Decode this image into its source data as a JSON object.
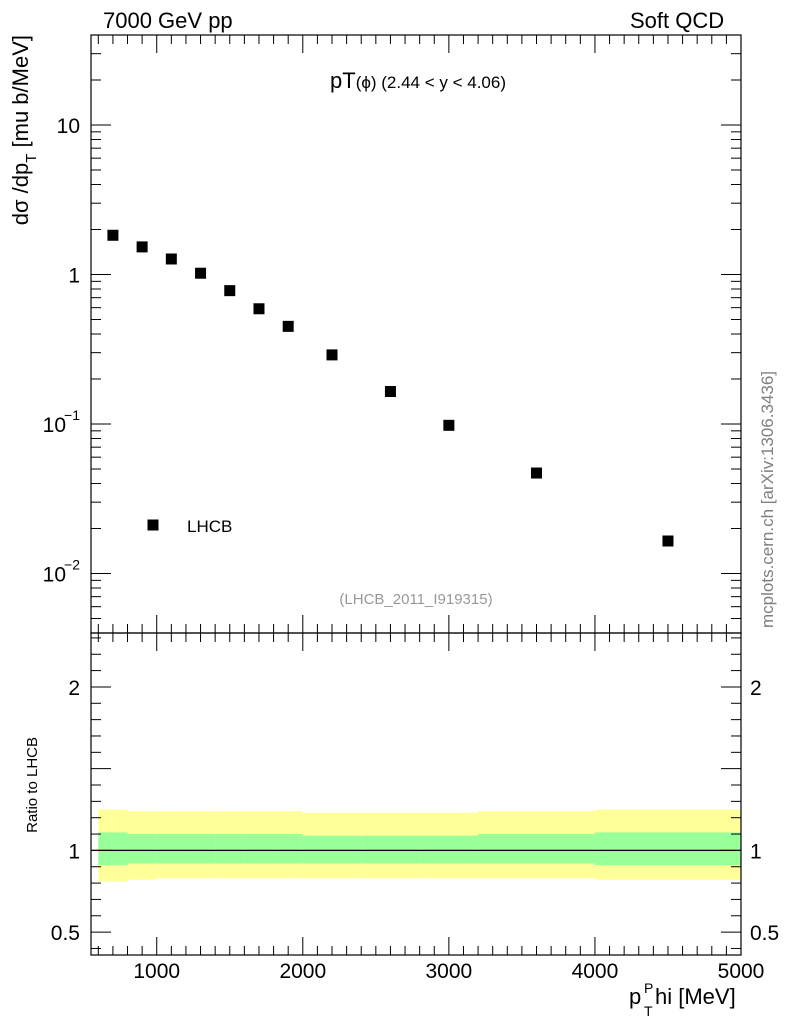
{
  "header": {
    "left": "7000 GeV pp",
    "right": "Soft QCD"
  },
  "watermark": "mcplots.cern.ch [arXiv:1306.3436]",
  "chart_data": {
    "type": "scatter",
    "title": "pT(ϕ) (2.44 < y < 4.06)",
    "analysis_id": "(LHCB_2011_I919315)",
    "xlabel": "p_T^Phi [MeV]",
    "ylabel": "dσ /dp_T [mu b/MeV]",
    "xlim": [
      550,
      5000
    ],
    "ylim": [
      0.004,
      40
    ],
    "yscale": "log",
    "legend": {
      "position": "bottom-left",
      "entries": [
        "LHCB"
      ]
    },
    "series": [
      {
        "name": "LHCB",
        "marker": "square",
        "x": [
          700,
          900,
          1100,
          1300,
          1500,
          1700,
          1900,
          2200,
          2600,
          3000,
          3600,
          4500
        ],
        "y": [
          1.83,
          1.53,
          1.27,
          1.02,
          0.78,
          0.59,
          0.45,
          0.29,
          0.165,
          0.098,
          0.047,
          0.0165
        ]
      }
    ],
    "x_ticks": [
      "1000",
      "2000",
      "3000",
      "4000",
      "5000"
    ],
    "x_tick_values": [
      1000,
      2000,
      3000,
      4000,
      5000
    ],
    "y_ticks": [
      {
        "value": 10,
        "mantissa": "10",
        "exp": ""
      },
      {
        "value": 1,
        "mantissa": "1",
        "exp": ""
      },
      {
        "value": 0.1,
        "mantissa": "10",
        "exp": "−1"
      },
      {
        "value": 0.01,
        "mantissa": "10",
        "exp": "−2"
      }
    ],
    "ratio": {
      "ylabel": "Ratio to LHCB",
      "ylim": [
        0.36,
        2.33
      ],
      "y_ticks": [
        {
          "value": 2,
          "label": "2"
        },
        {
          "value": 1,
          "label": "1"
        },
        {
          "value": 0.5,
          "label": "0.5"
        }
      ],
      "bins": [
        {
          "x0": 600,
          "x1": 800,
          "stat": [
            0.91,
            1.11
          ],
          "total": [
            0.81,
            1.25
          ]
        },
        {
          "x0": 800,
          "x1": 1000,
          "stat": [
            0.92,
            1.1
          ],
          "total": [
            0.82,
            1.24
          ]
        },
        {
          "x0": 1000,
          "x1": 1200,
          "stat": [
            0.92,
            1.1
          ],
          "total": [
            0.83,
            1.24
          ]
        },
        {
          "x0": 1200,
          "x1": 1400,
          "stat": [
            0.92,
            1.1
          ],
          "total": [
            0.83,
            1.24
          ]
        },
        {
          "x0": 1400,
          "x1": 1600,
          "stat": [
            0.92,
            1.1
          ],
          "total": [
            0.83,
            1.24
          ]
        },
        {
          "x0": 1600,
          "x1": 1800,
          "stat": [
            0.92,
            1.1
          ],
          "total": [
            0.83,
            1.24
          ]
        },
        {
          "x0": 1800,
          "x1": 2000,
          "stat": [
            0.92,
            1.1
          ],
          "total": [
            0.83,
            1.24
          ]
        },
        {
          "x0": 2000,
          "x1": 2400,
          "stat": [
            0.92,
            1.09
          ],
          "total": [
            0.83,
            1.23
          ]
        },
        {
          "x0": 2400,
          "x1": 2800,
          "stat": [
            0.92,
            1.09
          ],
          "total": [
            0.83,
            1.23
          ]
        },
        {
          "x0": 2800,
          "x1": 3200,
          "stat": [
            0.92,
            1.09
          ],
          "total": [
            0.83,
            1.23
          ]
        },
        {
          "x0": 3200,
          "x1": 4000,
          "stat": [
            0.92,
            1.1
          ],
          "total": [
            0.83,
            1.24
          ]
        },
        {
          "x0": 4000,
          "x1": 5000,
          "stat": [
            0.91,
            1.11
          ],
          "total": [
            0.82,
            1.25
          ]
        }
      ],
      "colors": {
        "stat": "#99ff99",
        "total": "#ffff99"
      }
    }
  }
}
